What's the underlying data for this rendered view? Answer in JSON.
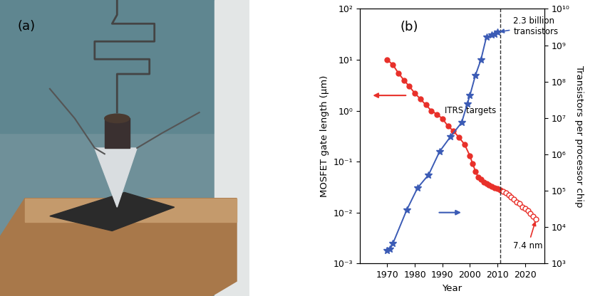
{
  "panel_a": {
    "label": "(a)"
  },
  "chart_data": {
    "type": "line",
    "panel_label": "(b)",
    "x_label": "Year",
    "y_label": "MOSFET gate length (μm)",
    "y2_label": "Transistors per processor chip",
    "log": "y",
    "grid": false,
    "xlim": [
      1960,
      2027
    ],
    "xticks": [
      1970,
      1980,
      1990,
      2000,
      2010,
      2020
    ],
    "ylim": [
      0.001,
      100
    ],
    "yticks": [
      {
        "value": 0.001,
        "label": "10⁻³"
      },
      {
        "value": 0.01,
        "label": "10⁻²"
      },
      {
        "value": 0.1,
        "label": "10⁻¹"
      },
      {
        "value": 1,
        "label": "10⁰"
      },
      {
        "value": 10,
        "label": "10¹"
      },
      {
        "value": 100,
        "label": "10²"
      }
    ],
    "y2lim": [
      1000,
      10000000000
    ],
    "y2ticks": [
      {
        "value": 1000,
        "label": "10³"
      },
      {
        "value": 10000,
        "label": "10⁴"
      },
      {
        "value": 100000,
        "label": "10⁵"
      },
      {
        "value": 1000000,
        "label": "10⁶"
      },
      {
        "value": 10000000,
        "label": "10⁷"
      },
      {
        "value": 100000000,
        "label": "10⁸"
      },
      {
        "value": 1000000000,
        "label": "10⁹"
      },
      {
        "value": 10000000000,
        "label": "10¹⁰"
      }
    ],
    "series": [
      {
        "color": "#e8302a",
        "marker": "circle",
        "line_style": "solid",
        "axis": "y",
        "x": [
          1970,
          1972,
          1974,
          1976,
          1978,
          1980,
          1982,
          1984,
          1986,
          1988,
          1990,
          1992,
          1994,
          1996,
          1998,
          2000,
          2001,
          2002,
          2003,
          2004,
          2005,
          2006,
          2007,
          2008,
          2009,
          2010,
          2011
        ],
        "values": [
          10,
          8,
          5.5,
          4,
          3,
          2.2,
          1.7,
          1.3,
          1.0,
          0.85,
          0.7,
          0.5,
          0.4,
          0.3,
          0.22,
          0.13,
          0.09,
          0.065,
          0.05,
          0.045,
          0.04,
          0.037,
          0.035,
          0.033,
          0.031,
          0.03,
          0.028
        ]
      },
      {
        "color": "#e8302a",
        "marker": "open_circle",
        "line_style": "solid",
        "axis": "y",
        "x": [
          2012,
          2013,
          2014,
          2015,
          2016,
          2017,
          2018,
          2019,
          2020,
          2021,
          2022,
          2023,
          2024
        ],
        "values": [
          0.026,
          0.024,
          0.022,
          0.02,
          0.018,
          0.016,
          0.015,
          0.013,
          0.012,
          0.011,
          0.0097,
          0.0085,
          0.0074
        ]
      },
      {
        "color": "#3b5bb5",
        "marker": "star",
        "line_style": "solid",
        "axis": "y2",
        "x": [
          1970,
          1971,
          1972,
          1977,
          1981,
          1985,
          1989,
          1993,
          1997,
          1999,
          2000,
          2002,
          2004,
          2006,
          2008,
          2009,
          2010
        ],
        "values": [
          2300,
          2500,
          3500,
          29000,
          120000,
          275000,
          1200000,
          3100000,
          7500000,
          24000000,
          42000000,
          150000000,
          400000000,
          1700000000,
          1900000000,
          2000000000,
          2300000000
        ]
      }
    ],
    "annotations": [
      {
        "text": "2.3 billion\ntransistors",
        "x": 2010,
        "y": 2300000000,
        "axis": "y2",
        "color": "#3b5bb5"
      },
      {
        "text": "7.4 nm",
        "x": 2024,
        "y": 0.0074,
        "axis": "y",
        "color": "#e8302a"
      },
      {
        "text": "ITRS targets",
        "x": 2011,
        "line_style": "dashed"
      }
    ]
  }
}
